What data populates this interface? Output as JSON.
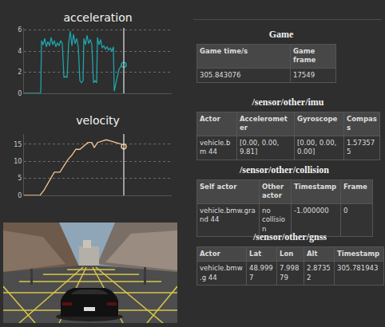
{
  "chart_data": [
    {
      "type": "line",
      "title": "acceleration",
      "x": [
        0,
        10,
        20,
        21,
        22,
        24,
        26,
        28,
        30,
        32,
        34,
        36,
        38,
        40,
        42,
        44,
        46,
        48,
        50,
        52,
        54,
        56,
        58,
        60,
        62,
        64,
        66,
        68,
        70,
        72,
        74,
        75,
        77,
        79,
        81,
        83,
        85,
        87,
        89,
        91,
        92,
        94,
        96,
        98,
        100,
        102,
        104,
        106,
        108,
        110,
        112,
        113,
        115,
        117,
        119,
        121,
        123,
        125
      ],
      "series": [
        {
          "color": "#1fa3a8",
          "values": [
            0,
            0,
            0,
            0.1,
            5.0,
            4.6,
            5.2,
            4.4,
            4.9,
            4.5,
            5.3,
            4.6,
            5.0,
            4.4,
            4.8,
            4.5,
            5.0,
            4.7,
            1.5,
            1.6,
            1.5,
            4.8,
            5.9,
            4.5,
            5.6,
            4.7,
            5.2,
            4.4,
            1.2,
            1.0,
            1.2,
            5.2,
            4.6,
            5.5,
            4.7,
            5.1,
            4.6,
            1.0,
            1.2,
            1.0,
            5.3,
            4.6,
            5.1,
            4.3,
            4.5,
            4.2,
            4.4,
            4.1,
            4.3,
            4.0,
            4.4,
            0.2,
            1.0,
            1.8,
            2.3,
            2.5,
            2.8,
            2.7
          ]
        }
      ],
      "cursor_x": 125,
      "xlim": [
        0,
        185
      ],
      "ylim": [
        0,
        6.2
      ],
      "yticks": [
        0,
        2,
        4,
        6
      ],
      "grid": true,
      "tick_labels": "y"
    },
    {
      "type": "line",
      "title": "velocity",
      "x": [
        0,
        20,
        25,
        30,
        35,
        38,
        45,
        50,
        55,
        60,
        65,
        70,
        75,
        80,
        85,
        88,
        92,
        98,
        103,
        108,
        113,
        118,
        122,
        125
      ],
      "series": [
        {
          "color": "#f3c48f",
          "values": [
            0,
            0,
            1.5,
            3.5,
            5.5,
            6.8,
            6.8,
            8.5,
            10.5,
            11.8,
            13.5,
            13.5,
            14.5,
            15.5,
            15.5,
            14.0,
            15.5,
            16,
            16.3,
            16,
            15.7,
            15.3,
            15,
            14.3
          ]
        }
      ],
      "cursor_x": 125,
      "xlim": [
        0,
        185
      ],
      "ylim": [
        0,
        18
      ],
      "yticks": [
        0,
        5,
        10,
        15
      ],
      "grid": true,
      "tick_labels": "y"
    }
  ],
  "tables": [
    {
      "title": "Game",
      "headers": [
        "Game time/s",
        "Game frame"
      ],
      "rows": [
        [
          "305.843076",
          "17549"
        ]
      ]
    },
    {
      "title": "/sensor/other/imu",
      "headers": [
        "Actor",
        "Accelerometer",
        "Gyroscope",
        "Compass"
      ],
      "rows": [
        [
          "vehicle.bm 44",
          "[0.00, 0.00, 9.81]",
          "[0.00, 0.00, 0.00]",
          "1.573575"
        ]
      ]
    },
    {
      "title": "/sensor/other/collision",
      "headers": [
        "Self actor",
        "Other actor",
        "Timestamp",
        "Frame"
      ],
      "rows": [
        [
          "vehicle.bmw.grand 44",
          "no collision",
          "-1.000000",
          "0"
        ]
      ]
    },
    {
      "title": "/sensor/other/gnss",
      "headers": [
        "Actor",
        "Lat",
        "Lon",
        "Alt",
        "Timestamp"
      ],
      "rows": [
        [
          "vehicle.bmw.g 44",
          "48.9997",
          "7.99879",
          "2.87352",
          "305.781943"
        ]
      ]
    }
  ]
}
